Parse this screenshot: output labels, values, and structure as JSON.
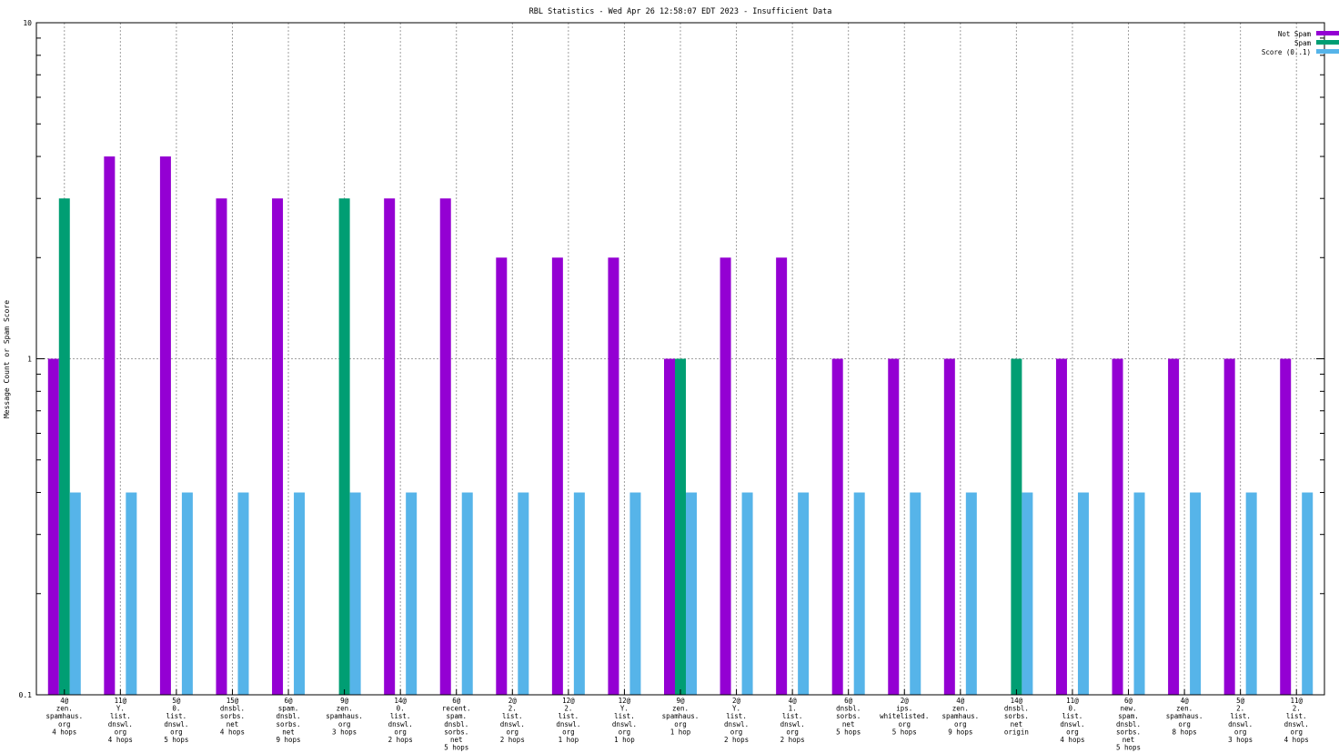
{
  "chart_data": {
    "type": "bar",
    "title": "RBL Statistics - Wed Apr 26 12:58:07 EDT 2023 - Insufficient Data",
    "ylabel": "Message Count or Spam Score",
    "xlabel": "",
    "yscale": "log",
    "ylim": [
      0.1,
      10
    ],
    "yticks": [
      "0.1",
      "1",
      "10"
    ],
    "grid": true,
    "legend_position": "top-right",
    "categories": [
      [
        "4@",
        "zen.",
        "spamhaus.",
        "org",
        "4 hops"
      ],
      [
        "11@",
        "Y.",
        "list.",
        "dnswl.",
        "org",
        "4 hops"
      ],
      [
        "5@",
        "0.",
        "list.",
        "dnswl.",
        "org",
        "5 hops"
      ],
      [
        "15@",
        "dnsbl.",
        "sorbs.",
        "net",
        "4 hops"
      ],
      [
        "6@",
        "spam.",
        "dnsbl.",
        "sorbs.",
        "net",
        "9 hops"
      ],
      [
        "9@",
        "zen.",
        "spamhaus.",
        "org",
        "3 hops"
      ],
      [
        "14@",
        "0.",
        "list.",
        "dnswl.",
        "org",
        "2 hops"
      ],
      [
        "6@",
        "recent.",
        "spam.",
        "dnsbl.",
        "sorbs.",
        "net",
        "5 hops"
      ],
      [
        "2@",
        "2.",
        "list.",
        "dnswl.",
        "org",
        "2 hops"
      ],
      [
        "12@",
        "2.",
        "list.",
        "dnswl.",
        "org",
        "1 hop"
      ],
      [
        "12@",
        "Y.",
        "list.",
        "dnswl.",
        "org",
        "1 hop"
      ],
      [
        "9@",
        "zen.",
        "spamhaus.",
        "org",
        "1 hop"
      ],
      [
        "2@",
        "Y.",
        "list.",
        "dnswl.",
        "org",
        "2 hops"
      ],
      [
        "4@",
        "1.",
        "list.",
        "dnswl.",
        "org",
        "2 hops"
      ],
      [
        "6@",
        "dnsbl.",
        "sorbs.",
        "net",
        "5 hops"
      ],
      [
        "2@",
        "ips.",
        "whitelisted.",
        "org",
        "5 hops"
      ],
      [
        "4@",
        "zen.",
        "spamhaus.",
        "org",
        "9 hops"
      ],
      [
        "14@",
        "dnsbl.",
        "sorbs.",
        "net",
        "origin"
      ],
      [
        "11@",
        "0.",
        "list.",
        "dnswl.",
        "org",
        "4 hops"
      ],
      [
        "6@",
        "new.",
        "spam.",
        "dnsbl.",
        "sorbs.",
        "net",
        "5 hops"
      ],
      [
        "4@",
        "zen.",
        "spamhaus.",
        "org",
        "8 hops"
      ],
      [
        "5@",
        "2.",
        "list.",
        "dnswl.",
        "org",
        "3 hops"
      ],
      [
        "11@",
        "2.",
        "list.",
        "dnswl.",
        "org",
        "4 hops"
      ]
    ],
    "series": [
      {
        "name": "Not Spam",
        "color": "#9400d3",
        "values": [
          1,
          4,
          4,
          3,
          3,
          null,
          3,
          3,
          2,
          2,
          2,
          1,
          2,
          2,
          1,
          1,
          1,
          null,
          1,
          1,
          1,
          1,
          1
        ]
      },
      {
        "name": "Spam",
        "color": "#009e73",
        "values": [
          3,
          null,
          null,
          null,
          null,
          3,
          null,
          null,
          null,
          null,
          null,
          1,
          null,
          null,
          null,
          null,
          null,
          1,
          null,
          null,
          null,
          null,
          null
        ]
      },
      {
        "name": "Score (0..1)",
        "color": "#56b4e9",
        "values": [
          0.4,
          0.4,
          0.4,
          0.4,
          0.4,
          0.4,
          0.4,
          0.4,
          0.4,
          0.4,
          0.4,
          0.4,
          0.4,
          0.4,
          0.4,
          0.4,
          0.4,
          0.4,
          0.4,
          0.4,
          0.4,
          0.4,
          0.4
        ]
      }
    ]
  }
}
